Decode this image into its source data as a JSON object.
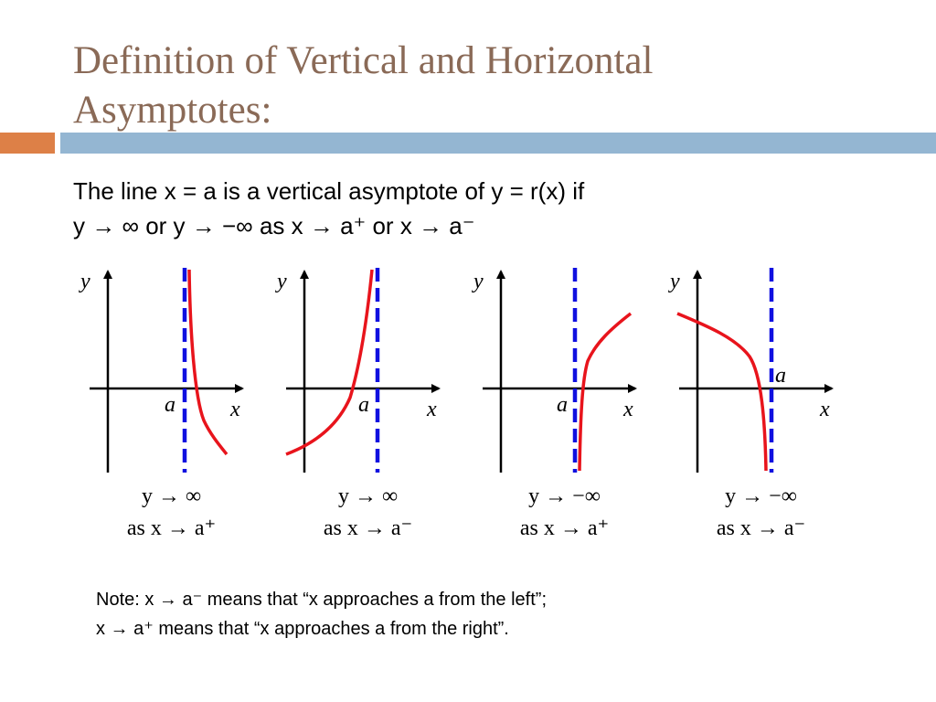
{
  "title": {
    "line1": "Definition of Vertical and Horizontal",
    "line2": "Asymptotes:"
  },
  "intro": {
    "line1": "The line x = a is a vertical asymptote of y = r(x) if",
    "line2": "y → ∞ or y → −∞ as x → a⁺ or x → a⁻"
  },
  "graphs": [
    {
      "y_axis_label": "y",
      "x_axis_label": "x",
      "a_label": "a",
      "cap_line1": "y → ∞",
      "cap_line2": "as x → a⁺"
    },
    {
      "y_axis_label": "y",
      "x_axis_label": "x",
      "a_label": "a",
      "cap_line1": "y → ∞",
      "cap_line2": "as x → a⁻"
    },
    {
      "y_axis_label": "y",
      "x_axis_label": "x",
      "a_label": "a",
      "cap_line1": "y → −∞",
      "cap_line2": "as x → a⁺"
    },
    {
      "y_axis_label": "y",
      "x_axis_label": "x",
      "a_label": "a",
      "cap_line1": "y → −∞",
      "cap_line2": "as x → a⁻"
    }
  ],
  "note": {
    "line1": "Note: x → a⁻ means that “x approaches a from the left”;",
    "line2": "x → a⁺ means that “x approaches a from the right”."
  },
  "colors": {
    "title": "#8a6a57",
    "bar_orange": "#dd8047",
    "bar_blue": "#94b6d2",
    "asymptote": "#1010e0",
    "curve": "#e8141c"
  }
}
